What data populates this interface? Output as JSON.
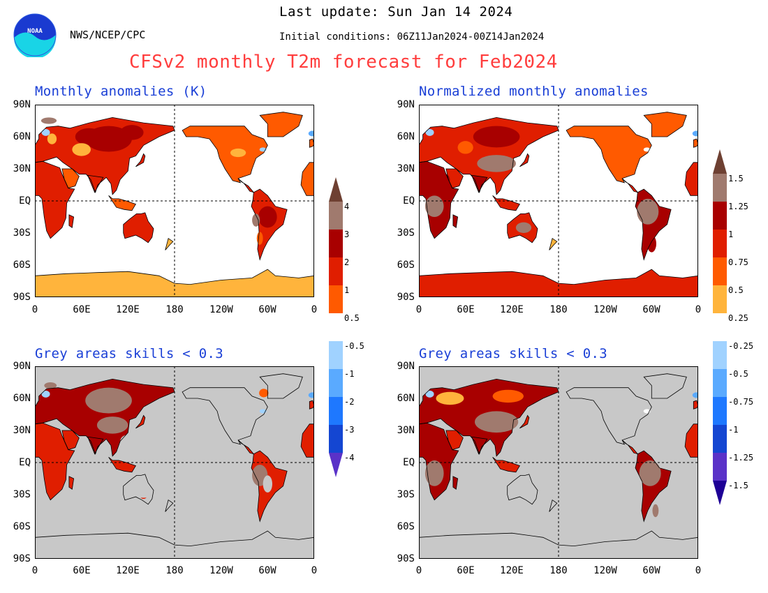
{
  "header": {
    "last_update": "Last update: Sun Jan 14 2024",
    "initial_conditions": "Initial conditions: 06Z11Jan2024-00Z14Jan2024",
    "org": "NWS/NCEP/CPC",
    "title": "CFSv2 monthly T2m forecast for Feb2024",
    "logo_text": "NOAA"
  },
  "panels": [
    {
      "title": "Monthly anomalies (K)",
      "background": "#ffffff"
    },
    {
      "title": "Normalized monthly anomalies",
      "background": "#ffffff"
    },
    {
      "title": "Grey areas skills < 0.3",
      "background": "#c8c8c8"
    },
    {
      "title": "Grey areas skills < 0.3",
      "background": "#c8c8c8"
    }
  ],
  "axes": {
    "lat_labels": [
      "90N",
      "60N",
      "30N",
      "EQ",
      "30S",
      "60S",
      "90S"
    ],
    "lon_labels": [
      "0",
      "60E",
      "120E",
      "180",
      "120W",
      "60W",
      "0"
    ]
  },
  "colorbar_left": {
    "labels": [
      "4",
      "3",
      "2",
      "1",
      "0.5",
      "-0.5",
      "-1",
      "-2",
      "-3",
      "-4"
    ]
  },
  "colorbar_right": {
    "labels": [
      "1.5",
      "1.25",
      "1",
      "0.75",
      "0.5",
      "0.25",
      "-0.25",
      "-0.5",
      "-0.75",
      "-1",
      "-1.25",
      "-1.5"
    ]
  },
  "colors": {
    "warm": [
      "#6e4032",
      "#a07a6e",
      "#a80000",
      "#e01e00",
      "#ff5a00",
      "#ffb43c"
    ],
    "neutral": "#ffffff",
    "cool": [
      "#a0d2ff",
      "#5aaaff",
      "#1e78ff",
      "#1446d2",
      "#5a32c8",
      "#1e0096"
    ],
    "title_red": "#ff3d3d",
    "panel_title_blue": "#1a3fd6",
    "grey_mask": "#c8c8c8"
  }
}
